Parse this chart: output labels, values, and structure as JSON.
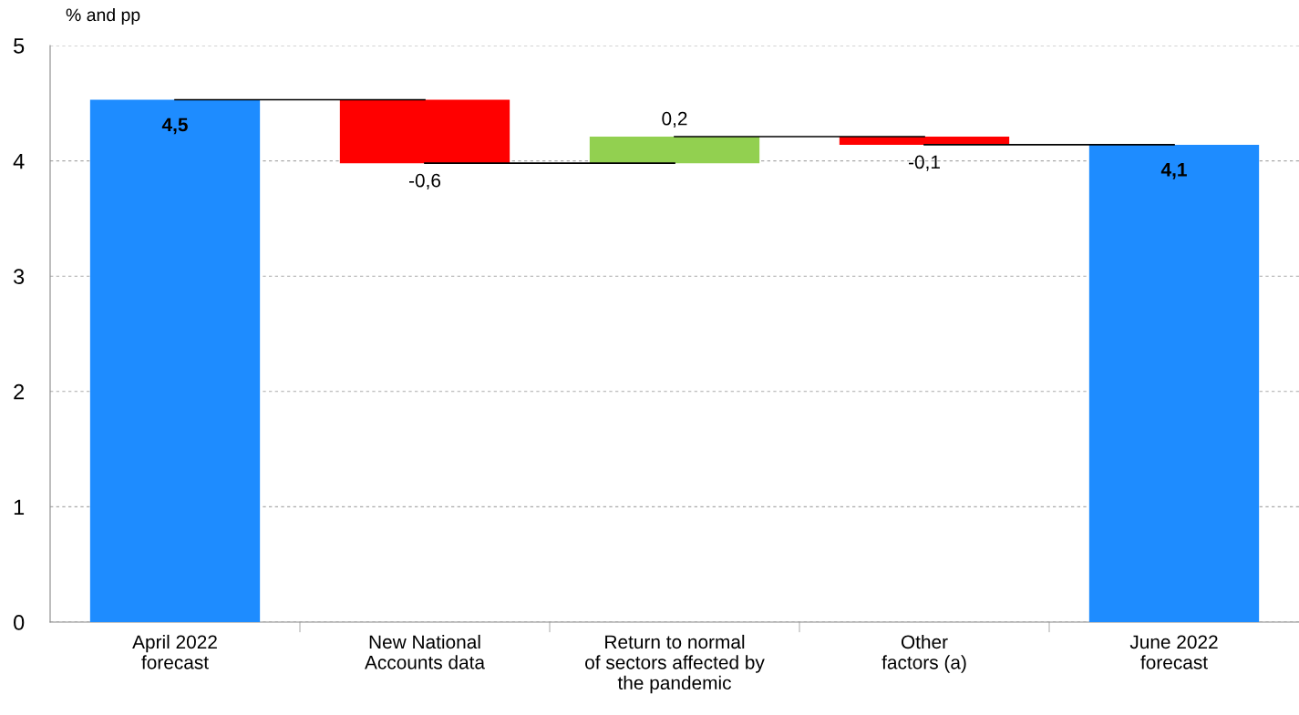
{
  "chart_data": {
    "type": "bar",
    "ylabel": "% and pp",
    "categories": [
      "April 2022\nforecast",
      "New National\nAccounts data",
      "Return to normal\nof sectors affected by\nthe pandemic",
      "Other\nfactors (a)",
      "June 2022\nforecast"
    ],
    "base": [
      0,
      4.53,
      3.98,
      4.21,
      0
    ],
    "values": [
      4.53,
      -0.55,
      0.23,
      -0.07,
      4.14
    ],
    "colors": [
      "#1e8cff",
      "#ff0000",
      "#92d050",
      "#ff0000",
      "#1e8cff"
    ],
    "value_labels": [
      "4,5",
      "-0,6",
      "0,2",
      "-0,1",
      "4,1"
    ],
    "ylim": [
      0,
      5
    ],
    "yticks": [
      0,
      1,
      2,
      3,
      4,
      5
    ],
    "grid": "y"
  }
}
